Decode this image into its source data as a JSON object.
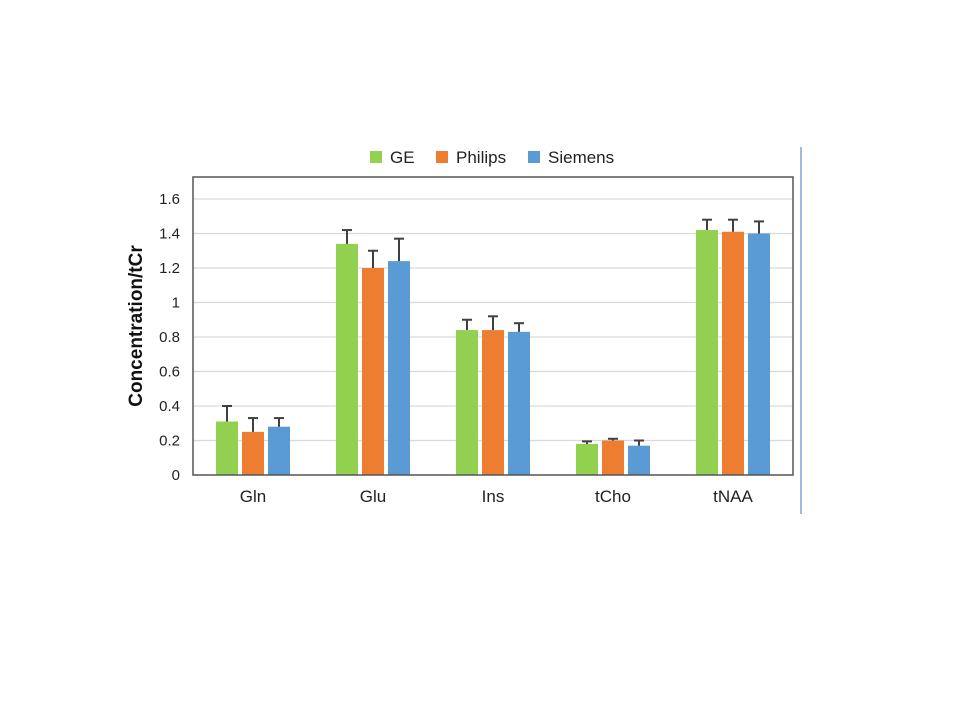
{
  "chart_data": {
    "type": "bar",
    "title": "",
    "xlabel": "",
    "ylabel": "Concentration/tCr",
    "ylim": [
      0,
      1.7
    ],
    "yticks": [
      0,
      0.2,
      0.4,
      0.6,
      0.8,
      1,
      1.2,
      1.4,
      1.6
    ],
    "ytick_labels": [
      "0",
      "0.2",
      "0.4",
      "0.6",
      "0.8",
      "1",
      "1.2",
      "1.4",
      "1.6"
    ],
    "grid": true,
    "legend_position": "top-center",
    "categories": [
      "Gln",
      "Glu",
      "Ins",
      "tCho",
      "tNAA"
    ],
    "series": [
      {
        "name": "GE",
        "color": "#92d050",
        "values": [
          0.31,
          1.34,
          0.84,
          0.18,
          1.42
        ],
        "errors": [
          0.09,
          0.08,
          0.06,
          0.015,
          0.06
        ]
      },
      {
        "name": "Philips",
        "color": "#ed7d31",
        "values": [
          0.25,
          1.2,
          0.84,
          0.2,
          1.41
        ],
        "errors": [
          0.08,
          0.1,
          0.08,
          0.01,
          0.07
        ]
      },
      {
        "name": "Siemens",
        "color": "#5b9bd5",
        "values": [
          0.28,
          1.24,
          0.83,
          0.17,
          1.4
        ],
        "errors": [
          0.05,
          0.13,
          0.05,
          0.03,
          0.07
        ]
      }
    ]
  }
}
